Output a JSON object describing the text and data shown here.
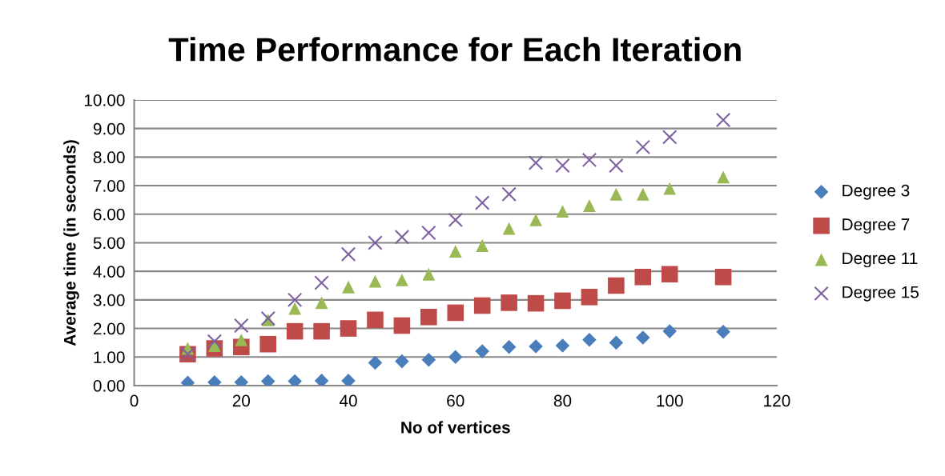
{
  "chart_data": {
    "type": "scatter",
    "title": "Time Performance for Each Iteration",
    "xlabel": "No of vertices",
    "ylabel": "Average time (in seconds)",
    "x": [
      10,
      15,
      20,
      25,
      30,
      35,
      40,
      45,
      50,
      55,
      60,
      65,
      70,
      75,
      80,
      85,
      90,
      95,
      100,
      110
    ],
    "series": [
      {
        "name": "Degree 3",
        "color": "#4a7ebb",
        "marker": "diamond",
        "values": [
          0.1,
          0.12,
          0.12,
          0.15,
          0.15,
          0.17,
          0.17,
          0.8,
          0.85,
          0.9,
          1.0,
          1.2,
          1.35,
          1.37,
          1.4,
          1.6,
          1.5,
          1.68,
          1.9,
          1.88
        ]
      },
      {
        "name": "Degree 7",
        "color": "#be4b48",
        "marker": "square",
        "values": [
          1.1,
          1.3,
          1.35,
          1.45,
          1.9,
          1.9,
          2.0,
          2.3,
          2.1,
          2.4,
          2.55,
          2.8,
          2.9,
          2.88,
          2.97,
          3.1,
          3.5,
          3.8,
          3.9,
          3.8
        ]
      },
      {
        "name": "Degree 11",
        "color": "#98b954",
        "marker": "triangle",
        "values": [
          1.3,
          1.4,
          1.6,
          2.3,
          2.7,
          2.9,
          3.45,
          3.65,
          3.7,
          3.9,
          4.7,
          4.9,
          5.5,
          5.8,
          6.1,
          6.3,
          6.7,
          6.7,
          6.9,
          7.3
        ]
      },
      {
        "name": "Degree 15",
        "color": "#7d60a0",
        "marker": "cross",
        "values": [
          1.1,
          1.55,
          2.1,
          2.35,
          3.0,
          3.6,
          4.6,
          5.0,
          5.2,
          5.35,
          5.8,
          6.4,
          6.7,
          7.8,
          7.7,
          7.9,
          7.7,
          8.35,
          8.7,
          9.3
        ]
      }
    ],
    "xlim": [
      0,
      120
    ],
    "xticks": [
      0,
      20,
      40,
      60,
      80,
      100,
      120
    ],
    "ylim": [
      0,
      10
    ],
    "yticks": [
      {
        "value": 0,
        "label": "0.00"
      },
      {
        "value": 1,
        "label": "1.00"
      },
      {
        "value": 2,
        "label": "2.00"
      },
      {
        "value": 3,
        "label": "3.00"
      },
      {
        "value": 4,
        "label": "4.00"
      },
      {
        "value": 5,
        "label": "5.00"
      },
      {
        "value": 6,
        "label": "6.00"
      },
      {
        "value": 7,
        "label": "7.00"
      },
      {
        "value": 8,
        "label": "8.00"
      },
      {
        "value": 9,
        "label": "9.00"
      },
      {
        "value": 10,
        "label": "10.00"
      }
    ],
    "grid": "y",
    "legend": "right"
  }
}
